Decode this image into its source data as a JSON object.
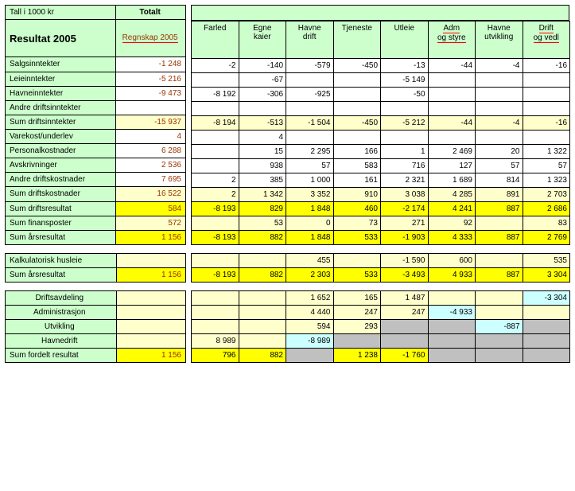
{
  "header": {
    "left_caption": "Tall i 1000 kr",
    "totalt": "Totalt",
    "title": "Resultat 2005",
    "regnskap": "Regnskap 2005",
    "cols": [
      "Farled",
      "Egne kaier",
      "Havne drift",
      "Tjeneste",
      "Utleie",
      "Adm og styre",
      "Havne utvikling",
      "Drift og vedl"
    ]
  },
  "main": {
    "rows": [
      {
        "label": "Salgsinntekter",
        "total": "-1 248",
        "c": [
          "-2",
          "-140",
          "-579",
          "-450",
          "-13",
          "-44",
          "-4",
          "-16"
        ],
        "cls": "row-white"
      },
      {
        "label": "Leieinntekter",
        "total": "-5 216",
        "c": [
          "",
          "-67",
          "",
          "",
          "-5 149",
          "",
          "",
          ""
        ],
        "cls": "row-white"
      },
      {
        "label": "Havneinntekter",
        "total": "-9 473",
        "c": [
          "-8 192",
          "-306",
          "-925",
          "",
          "-50",
          "",
          "",
          ""
        ],
        "cls": "row-white"
      },
      {
        "label": "Andre driftsinntekter",
        "total": "",
        "c": [
          "",
          "",
          "",
          "",
          "",
          "",
          "",
          ""
        ],
        "cls": "row-white"
      },
      {
        "label": "Sum driftsinntekter",
        "total": "-15 937",
        "c": [
          "-8 194",
          "-513",
          "-1 504",
          "-450",
          "-5 212",
          "-44",
          "-4",
          "-16"
        ],
        "cls": "row-lyellow"
      },
      {
        "label": "Varekost/underlev",
        "total": "4",
        "c": [
          "",
          "4",
          "",
          "",
          "",
          "",
          "",
          ""
        ],
        "cls": "row-white"
      },
      {
        "label": "Personalkostnader",
        "total": "6 288",
        "c": [
          "",
          "15",
          "2 295",
          "166",
          "1",
          "2 469",
          "20",
          "1 322"
        ],
        "cls": "row-white"
      },
      {
        "label": "Avskrivninger",
        "total": "2 536",
        "c": [
          "",
          "938",
          "57",
          "583",
          "716",
          "127",
          "57",
          "57"
        ],
        "cls": "row-white"
      },
      {
        "label": "Andre driftskostnader",
        "total": "7 695",
        "c": [
          "2",
          "385",
          "1 000",
          "161",
          "2 321",
          "1 689",
          "814",
          "1 323"
        ],
        "cls": "row-white"
      },
      {
        "label": "Sum driftskostnader",
        "total": "16 522",
        "c": [
          "2",
          "1 342",
          "3 352",
          "910",
          "3 038",
          "4 285",
          "891",
          "2 703"
        ],
        "cls": "row-lyellow"
      },
      {
        "label": "Sum driftsresultat",
        "total": "584",
        "c": [
          "-8 193",
          "829",
          "1 848",
          "460",
          "-2 174",
          "4 241",
          "887",
          "2 686"
        ],
        "cls": "row-yellow"
      },
      {
        "label": "Sum finansposter",
        "total": "572",
        "c": [
          "",
          "53",
          "0",
          "73",
          "271",
          "92",
          "",
          "83"
        ],
        "cls": "row-lyellow"
      },
      {
        "label": "Sum årsresultat",
        "total": "1 156",
        "c": [
          "-8 193",
          "882",
          "1 848",
          "533",
          "-1 903",
          "4 333",
          "887",
          "2 769"
        ],
        "cls": "row-yellow"
      }
    ]
  },
  "block2": {
    "rows": [
      {
        "label": "Kalkulatorisk husleie",
        "total": "",
        "c": [
          "",
          "",
          "455",
          "",
          "-1 590",
          "600",
          "",
          "535"
        ],
        "cls": "row-lyellow"
      },
      {
        "label": "Sum årsresultat",
        "total": "1 156",
        "c": [
          "-8 193",
          "882",
          "2 303",
          "533",
          "-3 493",
          "4 933",
          "887",
          "3 304"
        ],
        "cls": "row-yellow"
      }
    ]
  },
  "block3": {
    "rows": [
      {
        "label": "Driftsavdeling",
        "total": "",
        "c": [
          "",
          "",
          "1 652",
          "165",
          "1 487",
          "",
          "",
          "-3 304"
        ],
        "cls": "row-lyellow",
        "hiIdx": 7,
        "hiCls": "cell-lblue",
        "center": true
      },
      {
        "label": "Administrasjon",
        "total": "",
        "c": [
          "",
          "",
          "4 440",
          "247",
          "247",
          "-4 933",
          "",
          ""
        ],
        "cls": "row-lyellow",
        "hiIdx": 5,
        "hiCls": "cell-lblue",
        "center": true
      },
      {
        "label": "Utvikling",
        "total": "",
        "c": [
          "",
          "",
          "594",
          "293",
          "",
          "",
          "-887",
          ""
        ],
        "cls": "row-lyellow",
        "hiIdx": 6,
        "hiCls": "cell-lblue",
        "center": true,
        "grey": [
          4,
          5,
          7
        ]
      },
      {
        "label": "Havnedrift",
        "total": "",
        "c": [
          "8 989",
          "",
          "-8 989",
          "",
          "",
          "",
          "",
          ""
        ],
        "cls": "row-lyellow",
        "hiIdx": 2,
        "hiCls": "cell-lblue",
        "center": true,
        "grey": [
          3,
          4,
          5,
          6,
          7
        ]
      },
      {
        "label": "Sum fordelt resultat",
        "total": "1 156",
        "c": [
          "796",
          "882",
          "",
          "1 238",
          "-1 760",
          "",
          "",
          ""
        ],
        "cls": "row-yellow",
        "grey": [
          2,
          5,
          6,
          7
        ]
      }
    ]
  },
  "colors": {
    "header_green": "#ccffcc",
    "light_yellow": "#ffffcc",
    "yellow": "#ffff00",
    "brown_text": "#993300",
    "light_blue": "#ccffff",
    "grey": "#c0c0c0"
  }
}
